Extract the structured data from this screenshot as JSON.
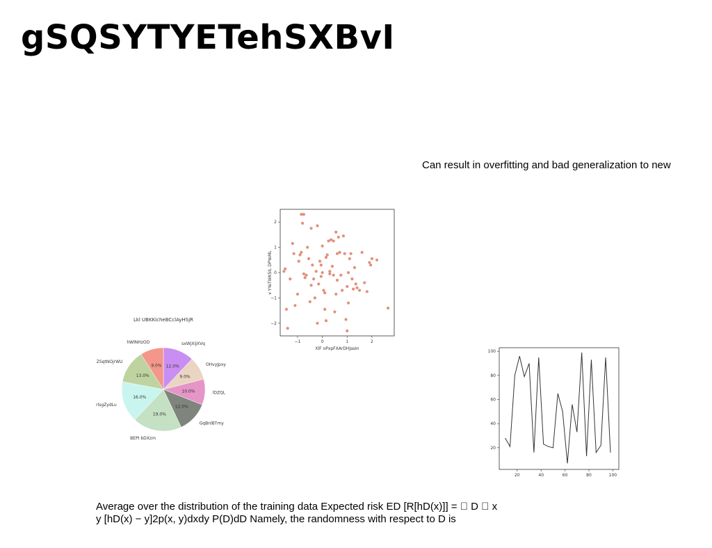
{
  "slide": {
    "title": "gSQSYTYETehSXBvI",
    "callout": "Can result in overfitting and bad generalization to new",
    "body_line1": "Average over the distribution of the training data Expected risk ED [R[hD(x)]] = \u0000 D \u0000 x",
    "body_line2": "y [hD(x) − y]2p(x, y)dxdy P(D)dD Namely, the randomness with respect to D is"
  },
  "chart_data": [
    {
      "type": "pie",
      "title": "Lkl UBKKicheBCclAyHSjR",
      "labels": [
        "sxWjXiJXVq",
        "OHvyJpxy",
        "lDZQL",
        "GqBnlBTmy",
        "BEPI bDXzm",
        "rlsgZydLu",
        "ZSqtNOjrWU",
        "hWlNHzOD"
      ],
      "values": [
        12.0,
        9.0,
        10.0,
        12.0,
        19.0,
        16.0,
        13.0,
        9.0
      ],
      "pct_labels": [
        "12.0%",
        "9.0%",
        "10.0%",
        "12.0%",
        "19.0%",
        "16.0%",
        "13.0%",
        "9.0%"
      ],
      "colors": [
        "#c98ef2",
        "#ead5c2",
        "#e595c6",
        "#7f857c",
        "#c4e1c3",
        "#c9f5ef",
        "#bed3a0",
        "#f4968a"
      ]
    },
    {
      "type": "scatter",
      "xlabel": "XlF oPxpFXArDHJasIn",
      "ylabel": "v YYeTWKSIL DPYeML",
      "xlim": [
        -1.7,
        2.9
      ],
      "ylim": [
        -2.5,
        2.5
      ],
      "xticks": [
        -1,
        0,
        1,
        2
      ],
      "yticks": [
        -2,
        -1,
        0,
        1,
        2
      ],
      "color": "#d9694f",
      "points": [
        [
          -0.85,
          2.3
        ],
        [
          -0.75,
          2.3
        ],
        [
          -0.8,
          1.95
        ],
        [
          -0.45,
          1.75
        ],
        [
          -0.2,
          1.85
        ],
        [
          -1.55,
          0.05
        ],
        [
          -1.5,
          0.15
        ],
        [
          -1.45,
          -1.45
        ],
        [
          -1.4,
          -2.2
        ],
        [
          -1.3,
          -0.25
        ],
        [
          -1.2,
          1.15
        ],
        [
          -1.15,
          0.75
        ],
        [
          -1.1,
          -1.3
        ],
        [
          -1.0,
          -0.85
        ],
        [
          -0.95,
          0.45
        ],
        [
          -0.9,
          0.7
        ],
        [
          -0.85,
          0.8
        ],
        [
          -0.75,
          -0.05
        ],
        [
          -0.7,
          -0.2
        ],
        [
          -0.65,
          -0.1
        ],
        [
          -0.6,
          1.0
        ],
        [
          -0.55,
          0.55
        ],
        [
          -0.5,
          -1.15
        ],
        [
          -0.45,
          -0.5
        ],
        [
          -0.4,
          0.3
        ],
        [
          -0.35,
          -0.25
        ],
        [
          -0.3,
          -1.0
        ],
        [
          -0.2,
          -2.0
        ],
        [
          -0.15,
          -0.45
        ],
        [
          -0.1,
          0.45
        ],
        [
          -0.05,
          0.3
        ],
        [
          0.0,
          1.05
        ],
        [
          0.0,
          0.0
        ],
        [
          0.05,
          -0.7
        ],
        [
          0.1,
          -0.8
        ],
        [
          0.1,
          -1.45
        ],
        [
          0.15,
          -1.9
        ],
        [
          0.2,
          0.7
        ],
        [
          0.25,
          1.25
        ],
        [
          0.3,
          -0.05
        ],
        [
          0.35,
          1.3
        ],
        [
          0.4,
          0.25
        ],
        [
          0.45,
          1.25
        ],
        [
          0.5,
          -1.55
        ],
        [
          0.55,
          1.6
        ],
        [
          0.6,
          -0.3
        ],
        [
          0.65,
          1.4
        ],
        [
          0.7,
          0.8
        ],
        [
          0.75,
          -0.1
        ],
        [
          0.8,
          -0.7
        ],
        [
          0.85,
          1.45
        ],
        [
          0.9,
          0.75
        ],
        [
          0.95,
          -1.85
        ],
        [
          1.0,
          -0.55
        ],
        [
          1.0,
          -2.3
        ],
        [
          1.05,
          -1.2
        ],
        [
          1.1,
          0.55
        ],
        [
          1.15,
          0.75
        ],
        [
          1.2,
          -0.25
        ],
        [
          1.25,
          -0.65
        ],
        [
          1.3,
          0.2
        ],
        [
          1.4,
          -0.6
        ],
        [
          1.5,
          -0.7
        ],
        [
          1.6,
          0.8
        ],
        [
          1.7,
          -0.4
        ],
        [
          1.8,
          -0.75
        ],
        [
          1.9,
          0.4
        ],
        [
          1.95,
          0.3
        ],
        [
          2.0,
          0.55
        ],
        [
          2.2,
          0.5
        ],
        [
          2.65,
          -1.4
        ],
        [
          0.3,
          0.05
        ],
        [
          -0.25,
          0.05
        ],
        [
          0.55,
          -0.85
        ],
        [
          1.05,
          0.0
        ],
        [
          -0.05,
          -0.15
        ],
        [
          0.15,
          0.6
        ],
        [
          0.6,
          0.75
        ],
        [
          1.35,
          -0.45
        ],
        [
          0.45,
          -0.1
        ]
      ]
    },
    {
      "type": "line",
      "xlim": [
        5,
        105
      ],
      "ylim": [
        2,
        103
      ],
      "xticks": [
        20,
        40,
        60,
        80,
        100
      ],
      "yticks": [
        20,
        40,
        60,
        80,
        100
      ],
      "color": "#333333",
      "x": [
        10,
        14,
        18,
        22,
        26,
        30,
        34,
        38,
        42,
        46,
        50,
        54,
        58,
        62,
        66,
        70,
        74,
        78,
        82,
        86,
        90,
        94,
        98
      ],
      "y": [
        28,
        21,
        80,
        96,
        79,
        90,
        16,
        95,
        23,
        21,
        20,
        65,
        50,
        7,
        56,
        33,
        99,
        13,
        93,
        16,
        22,
        95,
        16
      ]
    }
  ]
}
